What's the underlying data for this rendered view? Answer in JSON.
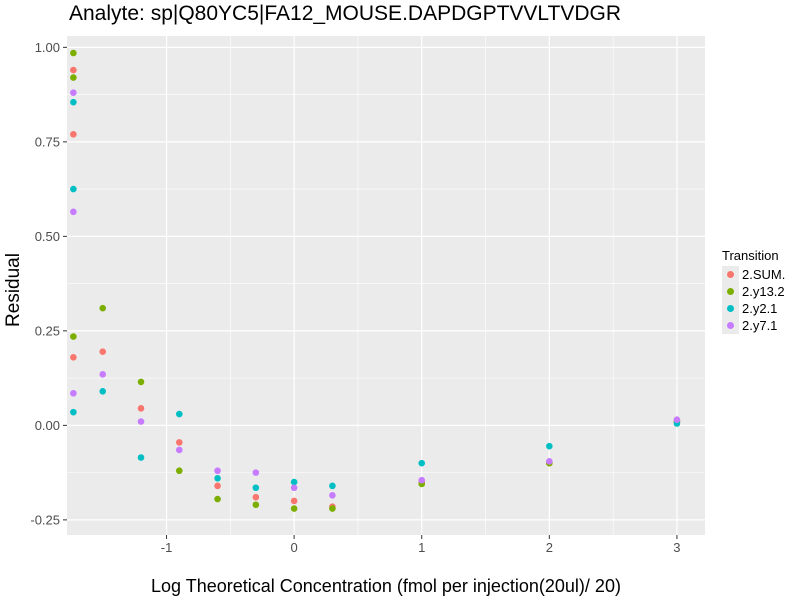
{
  "chart_data": {
    "type": "scatter",
    "title": "Analyte: sp|Q80YC5|FA12_MOUSE.DAPDGPTVVLTVDGR",
    "xlabel": "Log Theoretical Concentration (fmol per injection(20ul)/ 20)",
    "ylabel": "Residual",
    "xlim": [
      -1.78,
      3.22
    ],
    "ylim": [
      -0.29,
      1.03
    ],
    "x_ticks": [
      -1,
      0,
      1,
      2,
      3
    ],
    "x_tick_labels": [
      "-1",
      "0",
      "1",
      "2",
      "3"
    ],
    "y_ticks": [
      -0.25,
      0.0,
      0.25,
      0.5,
      0.75,
      1.0
    ],
    "y_tick_labels": [
      "-0.25",
      "0.00",
      "0.25",
      "0.50",
      "0.75",
      "1.00"
    ],
    "grid": true,
    "legend": {
      "title": "Transition",
      "position": "right"
    },
    "series": [
      {
        "name": "2.SUM.",
        "color": "#F8766D",
        "points": [
          [
            -1.73,
            0.94
          ],
          [
            -1.73,
            0.77
          ],
          [
            -1.73,
            0.18
          ],
          [
            -1.5,
            0.195
          ],
          [
            -1.2,
            0.045
          ],
          [
            -0.9,
            -0.045
          ],
          [
            -0.6,
            -0.16
          ],
          [
            -0.3,
            -0.19
          ],
          [
            0,
            -0.2
          ],
          [
            0.3,
            -0.215
          ],
          [
            1,
            -0.15
          ],
          [
            2,
            -0.1
          ],
          [
            3,
            0.01
          ]
        ]
      },
      {
        "name": "2.y13.2",
        "color": "#7CAE00",
        "points": [
          [
            -1.73,
            0.985
          ],
          [
            -1.73,
            0.92
          ],
          [
            -1.73,
            0.235
          ],
          [
            -1.5,
            0.31
          ],
          [
            -1.2,
            0.115
          ],
          [
            -0.9,
            -0.12
          ],
          [
            -0.6,
            -0.195
          ],
          [
            -0.3,
            -0.21
          ],
          [
            0,
            -0.22
          ],
          [
            0.3,
            -0.22
          ],
          [
            1,
            -0.155
          ],
          [
            2,
            -0.1
          ],
          [
            3,
            0.01
          ]
        ]
      },
      {
        "name": "2.y2.1",
        "color": "#00BFC4",
        "points": [
          [
            -1.73,
            0.855
          ],
          [
            -1.73,
            0.625
          ],
          [
            -1.73,
            0.035
          ],
          [
            -1.5,
            0.09
          ],
          [
            -1.2,
            -0.085
          ],
          [
            -0.9,
            0.03
          ],
          [
            -0.6,
            -0.14
          ],
          [
            -0.3,
            -0.165
          ],
          [
            0,
            -0.15
          ],
          [
            0.3,
            -0.16
          ],
          [
            1,
            -0.1
          ],
          [
            2,
            -0.055
          ],
          [
            3,
            0.005
          ]
        ]
      },
      {
        "name": "2.y7.1",
        "color": "#C77CFF",
        "points": [
          [
            -1.73,
            0.88
          ],
          [
            -1.73,
            0.565
          ],
          [
            -1.73,
            0.085
          ],
          [
            -1.5,
            0.135
          ],
          [
            -1.2,
            0.01
          ],
          [
            -0.9,
            -0.065
          ],
          [
            -0.6,
            -0.12
          ],
          [
            -0.3,
            -0.125
          ],
          [
            0,
            -0.165
          ],
          [
            0.3,
            -0.185
          ],
          [
            1,
            -0.145
          ],
          [
            2,
            -0.095
          ],
          [
            3,
            0.015
          ]
        ]
      }
    ]
  }
}
